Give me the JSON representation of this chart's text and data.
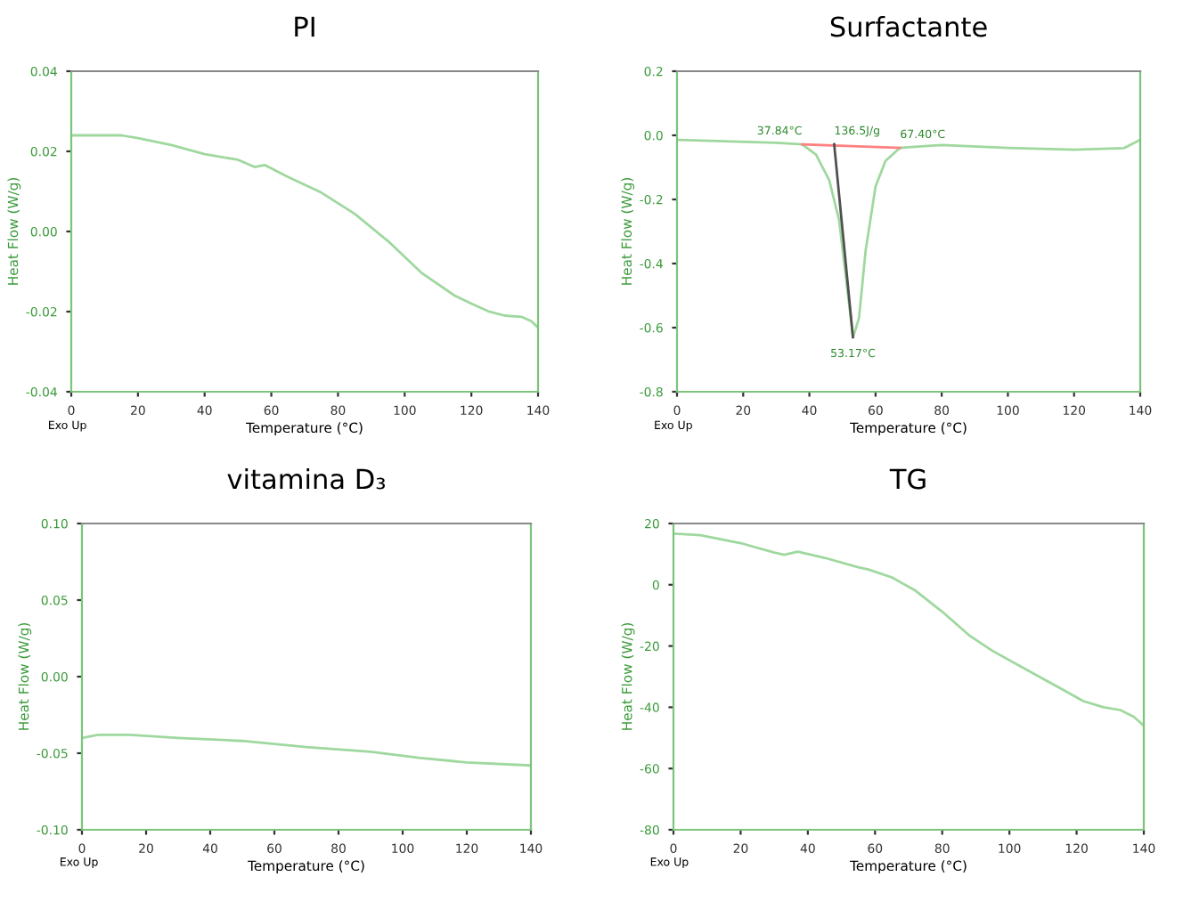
{
  "chart_data": [
    {
      "type": "line",
      "title": "PI",
      "xlabel": "Temperature (°C)",
      "ylabel": "Heat Flow (W/g)",
      "xlim": [
        0,
        140
      ],
      "xticks": [
        0,
        20,
        40,
        60,
        80,
        100,
        120,
        140
      ],
      "ylim": [
        -0.04,
        0.04
      ],
      "yticks": [
        {
          "value": -0.04,
          "label": "-0.04"
        },
        {
          "value": -0.02,
          "label": "-0.02"
        },
        {
          "value": 0,
          "label": "0.00"
        },
        {
          "value": 0.02,
          "label": "0.02"
        },
        {
          "value": 0.04,
          "label": "0.04"
        }
      ],
      "grid": false,
      "annotations": [
        "Exo Up"
      ],
      "series": [
        {
          "color": "#9fd89f",
          "x": [
            0,
            15,
            20,
            30,
            40,
            50,
            55,
            58,
            65,
            75,
            85,
            95,
            105,
            115,
            120,
            125,
            130,
            135,
            138,
            140
          ],
          "values": [
            0.024,
            0.024,
            0.0233,
            0.0216,
            0.0193,
            0.0179,
            0.0161,
            0.0166,
            0.0136,
            0.0097,
            0.0044,
            -0.0024,
            -0.0103,
            -0.016,
            -0.018,
            -0.0199,
            -0.021,
            -0.0213,
            -0.0224,
            -0.024
          ]
        }
      ]
    },
    {
      "type": "line",
      "title": "Surfactante",
      "xlabel": "Temperature (°C)",
      "ylabel": "Heat Flow (W/g)",
      "xlim": [
        0,
        140
      ],
      "xticks": [
        0,
        20,
        40,
        60,
        80,
        100,
        120,
        140
      ],
      "ylim": [
        -0.8,
        0.2
      ],
      "yticks": [
        -0.8,
        -0.6,
        -0.4,
        -0.2,
        {
          "value": 0,
          "label": "0.0"
        },
        0.2
      ],
      "grid": false,
      "annotations": [
        {
          "text": "37.84°C",
          "x": 37.84,
          "y": -0.028
        },
        {
          "text": "136.5J/g",
          "x": 47.5,
          "y": -0.028
        },
        {
          "text": "67.40°C",
          "x": 67.4,
          "y": -0.039
        },
        {
          "text": "53.17°C",
          "x": 53.17,
          "y": -0.63
        },
        "Exo Up"
      ],
      "series": [
        {
          "color": "#9fd89f",
          "x": [
            0,
            30,
            37.8,
            42,
            46,
            49,
            51,
            53.2,
            55,
            57,
            60,
            63,
            67.4,
            80,
            100,
            120,
            135,
            140
          ],
          "values": [
            -0.014,
            -0.023,
            -0.028,
            -0.06,
            -0.14,
            -0.265,
            -0.44,
            -0.63,
            -0.57,
            -0.36,
            -0.16,
            -0.08,
            -0.039,
            -0.03,
            -0.039,
            -0.045,
            -0.04,
            -0.014
          ]
        },
        {
          "color": "#ff8080",
          "x": [
            37.84,
            67.4
          ],
          "values": [
            -0.028,
            -0.039
          ]
        },
        {
          "color": "#505050",
          "x": [
            47.5,
            53.17
          ],
          "values": [
            -0.028,
            -0.63
          ]
        }
      ]
    },
    {
      "type": "line",
      "title": "vitamina D₃",
      "xlabel": "Temperature (°C)",
      "ylabel": "Heat Flow (W/g)",
      "xlim": [
        0,
        140
      ],
      "xticks": [
        0,
        20,
        40,
        60,
        80,
        100,
        120,
        140
      ],
      "ylim": [
        -0.1,
        0.1
      ],
      "yticks": [
        {
          "value": -0.1,
          "label": "-0.10"
        },
        -0.05,
        {
          "value": 0,
          "label": "0.00"
        },
        0.05,
        {
          "value": 0.1,
          "label": "0.10"
        }
      ],
      "grid": false,
      "annotations": [
        "Exo Up"
      ],
      "series": [
        {
          "color": "#9fd89f",
          "x": [
            0,
            5,
            15,
            30,
            50,
            70,
            90,
            105,
            120,
            140
          ],
          "values": [
            -0.04,
            -0.038,
            -0.038,
            -0.04,
            -0.042,
            -0.046,
            -0.049,
            -0.053,
            -0.056,
            -0.058
          ]
        }
      ]
    },
    {
      "type": "line",
      "title": "TG",
      "xlabel": "Temperature (°C)",
      "ylabel": "Heat Flow (W/g)",
      "xlim": [
        0,
        140
      ],
      "xticks": [
        0,
        20,
        40,
        60,
        80,
        100,
        120,
        140
      ],
      "ylim": [
        -80,
        20
      ],
      "yticks": [
        -80,
        -60,
        -40,
        -20,
        0,
        20
      ],
      "grid": false,
      "annotations": [
        "Exo Up"
      ],
      "series": [
        {
          "color": "#9fd89f",
          "x": [
            0,
            8,
            20,
            30,
            33,
            37,
            45,
            55,
            58,
            65,
            72,
            80,
            88,
            95,
            105,
            115,
            122,
            128,
            133,
            137,
            140
          ],
          "values": [
            16.7,
            16.2,
            13.6,
            10.5,
            9.8,
            10.8,
            8.8,
            5.7,
            5,
            2.4,
            -1.9,
            -8.8,
            -16.5,
            -21.6,
            -27.7,
            -33.7,
            -38,
            -40,
            -40.9,
            -43.1,
            -46
          ]
        }
      ]
    }
  ]
}
